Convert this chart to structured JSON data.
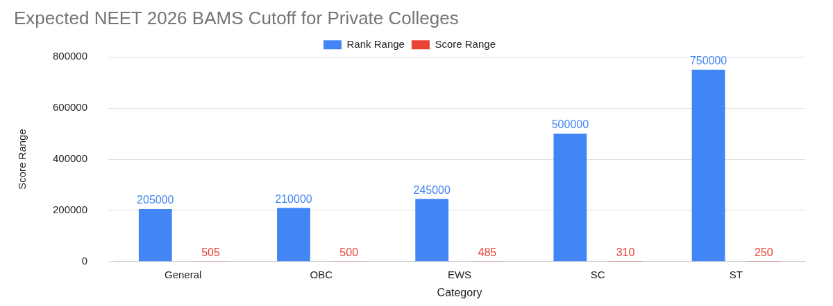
{
  "chart_data": {
    "type": "bar",
    "title": "Expected NEET 2026 BAMS Cutoff for Private Colleges",
    "xlabel": "Category",
    "ylabel": "Score Range",
    "categories": [
      "General",
      "OBC",
      "EWS",
      "SC",
      "ST"
    ],
    "series": [
      {
        "name": "Rank Range",
        "color": "#4285f4",
        "values": [
          205000,
          210000,
          245000,
          500000,
          750000
        ]
      },
      {
        "name": "Score Range",
        "color": "#ea4335",
        "values": [
          505,
          500,
          485,
          310,
          250
        ]
      }
    ],
    "ylim": [
      0,
      800000
    ],
    "yticks": [
      0,
      200000,
      400000,
      600000,
      800000
    ],
    "grid": "y",
    "legend": "top",
    "data_labels": true
  }
}
